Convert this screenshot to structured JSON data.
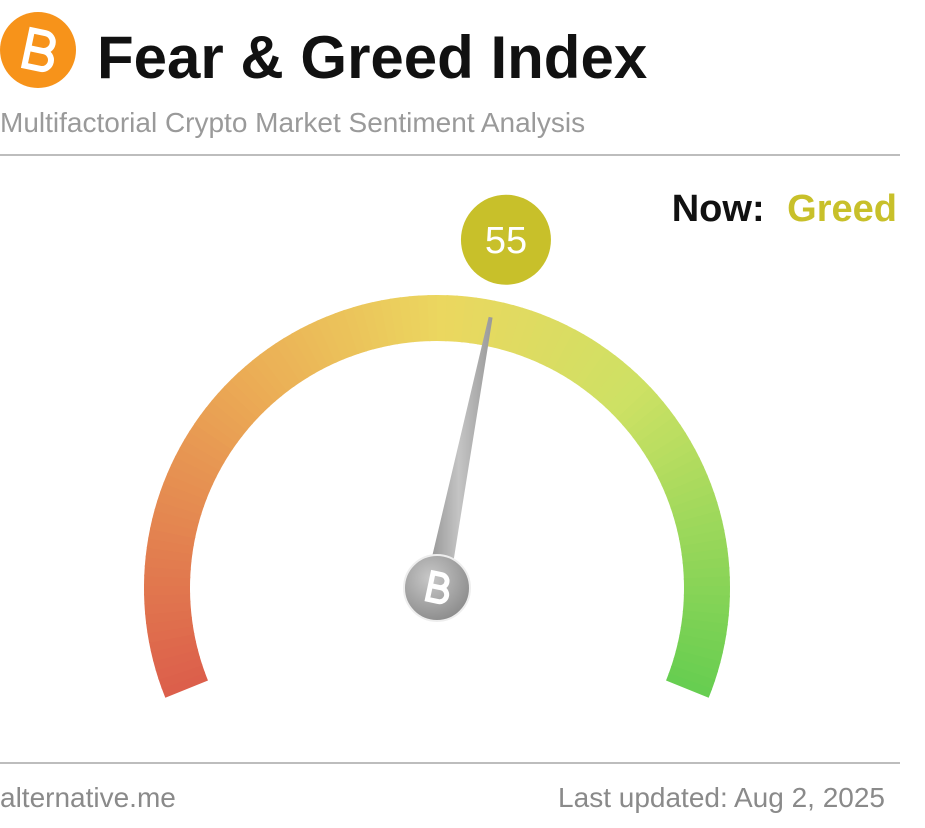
{
  "chart_data": {
    "type": "gauge",
    "title": "Fear & Greed Index",
    "subtitle": "Multifactorial Crypto Market Sentiment Analysis",
    "now_label": "Now:",
    "classification": "Greed",
    "value": 55,
    "color": "#c8c02a",
    "ylim": [
      0,
      100
    ],
    "source": "alternative.me",
    "updated": "Last updated: Aug 2, 2025"
  }
}
